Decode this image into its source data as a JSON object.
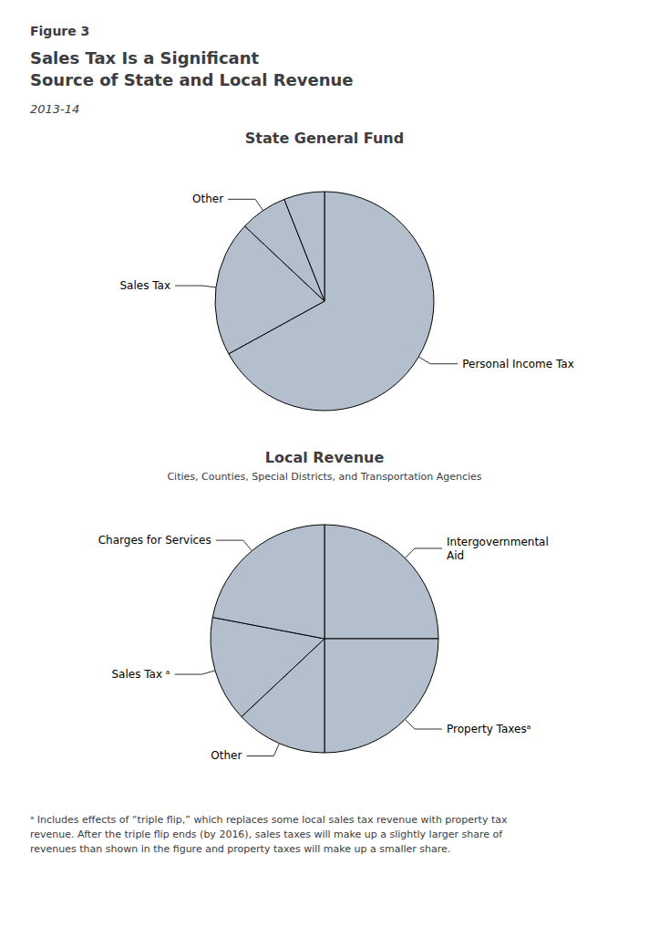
{
  "header": "Figure 3",
  "title": "Sales Tax Is a Significant\nSource of State and Local Revenue",
  "subtitle": "2013-14",
  "footnote": "ᵃ Includes effects of “triple flip,” which replaces some local sales tax revenue with property tax\nrevenue. After the triple flip ends (by 2016), sales taxes will make up a slightly larger share of\nrevenues than shown in the figure and property taxes will make up a smaller share.",
  "chart_data": [
    {
      "type": "pie",
      "title": "State General Fund",
      "categories": [
        "Personal Income Tax",
        "Sales Tax",
        "Other",
        null
      ],
      "values": [
        67,
        20,
        7,
        6
      ],
      "color": "#b3bfcc"
    },
    {
      "type": "pie",
      "title": "Local Revenue",
      "subtitle": "Cities, Counties, Special Districts, and Transportation Agencies",
      "categories": [
        "Intergovernmental\nAid",
        "Property Taxesᵃ",
        "Other",
        "Sales Tax ᵃ",
        "Charges for Services"
      ],
      "values": [
        25,
        25,
        13,
        15,
        22
      ],
      "color": "#b3bfcc"
    }
  ]
}
